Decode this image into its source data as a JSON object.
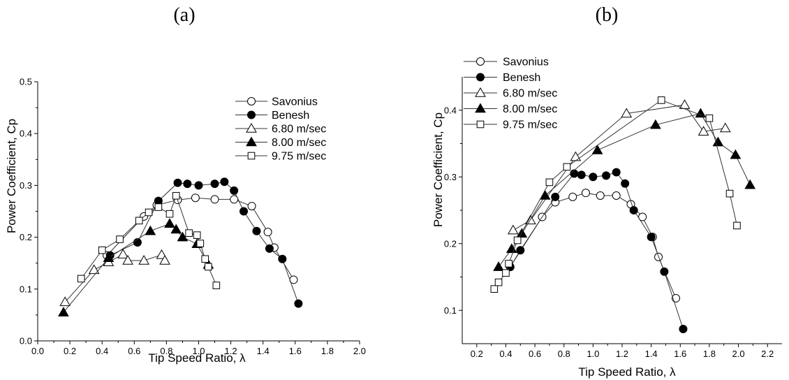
{
  "chart_data": [
    {
      "panel": "(a)",
      "type": "line",
      "xlabel": "Tip Speed Ratio, λ",
      "ylabel": "Power Coefficient, Cp",
      "xlim": [
        0.0,
        2.0
      ],
      "ylim": [
        0.0,
        0.5
      ],
      "xticks": [
        0.0,
        0.2,
        0.4,
        0.6,
        0.8,
        1.0,
        1.2,
        1.4,
        1.6,
        1.8,
        2.0
      ],
      "yticks": [
        0.0,
        0.1,
        0.2,
        0.3,
        0.4,
        0.5
      ],
      "xtick_labels": [
        "0.0",
        "0.2",
        "0.4",
        "0.6",
        "0.8",
        "1.0",
        "1.2",
        "1.4",
        "1.6",
        "1.8",
        "2.0"
      ],
      "ytick_labels": [
        "0.0",
        "0.1",
        "0.2",
        "0.3",
        "0.4",
        "0.5"
      ],
      "legend_position": "top-right",
      "series": [
        {
          "name": "Savonius",
          "marker": "circle-open",
          "x": [
            0.43,
            0.66,
            0.74,
            0.87,
            0.98,
            1.1,
            1.22,
            1.33,
            1.43,
            1.47,
            1.59
          ],
          "y": [
            0.165,
            0.24,
            0.262,
            0.272,
            0.276,
            0.273,
            0.273,
            0.26,
            0.21,
            0.18,
            0.118
          ]
        },
        {
          "name": "Benesh",
          "marker": "circle-filled",
          "x": [
            0.45,
            0.62,
            0.75,
            0.87,
            0.93,
            1.0,
            1.1,
            1.16,
            1.22,
            1.28,
            1.36,
            1.44,
            1.52,
            1.62
          ],
          "y": [
            0.165,
            0.19,
            0.27,
            0.305,
            0.303,
            0.3,
            0.303,
            0.307,
            0.29,
            0.25,
            0.212,
            0.178,
            0.158,
            0.072
          ]
        },
        {
          "name": "6.80 m/sec",
          "marker": "triangle-open",
          "x": [
            0.17,
            0.35,
            0.44,
            0.53,
            0.56,
            0.66,
            0.77,
            0.79
          ],
          "y": [
            0.075,
            0.137,
            0.152,
            0.167,
            0.155,
            0.155,
            0.166,
            0.155
          ]
        },
        {
          "name": "8.00 m/sec",
          "marker": "triangle-filled",
          "x": [
            0.16,
            0.44,
            0.7,
            0.82,
            0.86,
            0.9,
            0.99,
            1.06
          ],
          "y": [
            0.055,
            0.16,
            0.212,
            0.226,
            0.215,
            0.2,
            0.187,
            0.147
          ]
        },
        {
          "name": "9.75 m/sec",
          "marker": "square-open",
          "x": [
            0.27,
            0.4,
            0.51,
            0.63,
            0.69,
            0.75,
            0.82,
            0.86,
            0.94,
            0.99,
            1.01,
            1.04,
            1.06,
            1.11
          ],
          "y": [
            0.12,
            0.175,
            0.196,
            0.232,
            0.248,
            0.258,
            0.245,
            0.28,
            0.208,
            0.204,
            0.188,
            0.158,
            0.143,
            0.107
          ]
        }
      ]
    },
    {
      "panel": "(b)",
      "type": "line",
      "xlabel": "Tip Speed Ratio, λ",
      "ylabel": "Power Coefficient, Cp",
      "xlim": [
        0.1,
        2.3
      ],
      "ylim": [
        0.05,
        0.45
      ],
      "xticks": [
        0.2,
        0.4,
        0.6,
        0.8,
        1.0,
        1.2,
        1.4,
        1.6,
        1.8,
        2.0,
        2.2
      ],
      "yticks": [
        0.1,
        0.2,
        0.3,
        0.4
      ],
      "xtick_labels": [
        "0.2",
        "0.4",
        "0.6",
        "0.8",
        "1.0",
        "1.2",
        "1.4",
        "1.6",
        "1.8",
        "2.0",
        "2.2"
      ],
      "ytick_labels": [
        "0.1",
        "0.2",
        "0.3",
        "0.4"
      ],
      "legend_position": "top-left",
      "series": [
        {
          "name": "Savonius",
          "marker": "circle-open",
          "x": [
            0.43,
            0.65,
            0.74,
            0.86,
            0.95,
            1.05,
            1.16,
            1.26,
            1.34,
            1.41,
            1.45,
            1.57
          ],
          "y": [
            0.165,
            0.24,
            0.262,
            0.27,
            0.276,
            0.272,
            0.272,
            0.259,
            0.24,
            0.21,
            0.18,
            0.118
          ]
        },
        {
          "name": "Benesh",
          "marker": "circle-filled",
          "x": [
            0.43,
            0.5,
            0.74,
            0.87,
            0.92,
            1.0,
            1.09,
            1.16,
            1.22,
            1.28,
            1.4,
            1.49,
            1.62
          ],
          "y": [
            0.165,
            0.19,
            0.27,
            0.305,
            0.303,
            0.3,
            0.302,
            0.307,
            0.29,
            0.25,
            0.21,
            0.158,
            0.072
          ]
        },
        {
          "name": "6.80 m/sec",
          "marker": "triangle-open",
          "x": [
            0.45,
            0.57,
            0.88,
            1.23,
            1.63,
            1.76,
            1.91
          ],
          "y": [
            0.22,
            0.235,
            0.33,
            0.395,
            0.408,
            0.368,
            0.373
          ]
        },
        {
          "name": "8.00 m/sec",
          "marker": "triangle-filled",
          "x": [
            0.35,
            0.44,
            0.51,
            0.67,
            1.03,
            1.43,
            1.74,
            1.86,
            1.98,
            2.08
          ],
          "y": [
            0.165,
            0.192,
            0.215,
            0.272,
            0.34,
            0.378,
            0.395,
            0.352,
            0.333,
            0.288
          ]
        },
        {
          "name": "9.75 m/sec",
          "marker": "square-open",
          "x": [
            0.32,
            0.35,
            0.4,
            0.42,
            0.48,
            0.7,
            0.82,
            1.47,
            1.8,
            1.94,
            1.99
          ],
          "y": [
            0.132,
            0.142,
            0.156,
            0.17,
            0.205,
            0.292,
            0.315,
            0.415,
            0.388,
            0.275,
            0.227
          ]
        }
      ]
    }
  ]
}
